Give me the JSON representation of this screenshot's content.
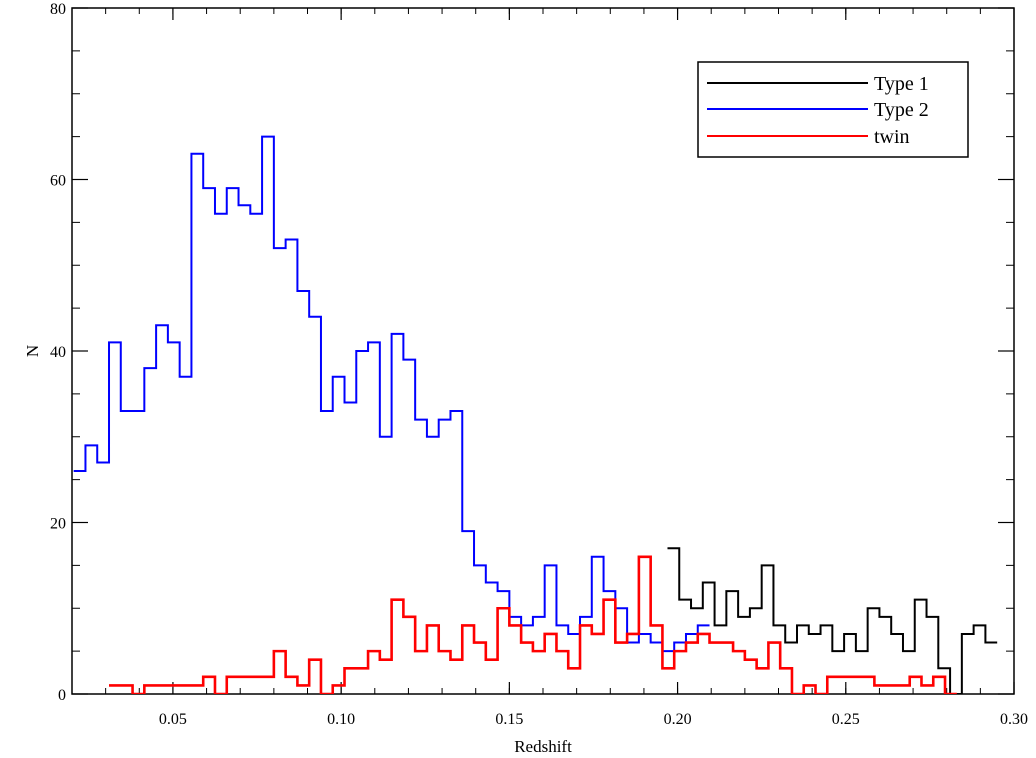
{
  "chart_data": {
    "type": "line",
    "step": true,
    "xlabel": "Redshift",
    "ylabel": "N",
    "xlim": [
      0.02,
      0.3
    ],
    "ylim": [
      0,
      80
    ],
    "x_ticks": [
      "0.05",
      "0.10",
      "0.15",
      "0.20",
      "0.25",
      "0.30"
    ],
    "y_ticks": [
      "0",
      "20",
      "40",
      "60",
      "80"
    ],
    "x_tick_values": [
      0.05,
      0.1,
      0.15,
      0.2,
      0.25,
      0.3
    ],
    "y_tick_values": [
      0,
      20,
      40,
      60,
      80
    ],
    "legend_position": "top-right",
    "bin_width": 0.0035,
    "series": [
      {
        "name": "Type 1",
        "color": "#000000",
        "start": 0.197,
        "values": [
          17,
          11,
          10,
          13,
          8,
          12,
          9,
          10,
          15,
          8,
          6,
          8,
          7,
          8,
          5,
          7,
          5,
          10,
          9,
          7,
          5,
          11,
          9,
          3,
          0,
          7,
          8,
          6
        ]
      },
      {
        "name": "Type 2",
        "color": "#0000ff",
        "start": 0.0205,
        "values": [
          26,
          29,
          27,
          41,
          33,
          33,
          38,
          43,
          41,
          37,
          63,
          59,
          56,
          59,
          57,
          56,
          65,
          52,
          53,
          47,
          44,
          33,
          37,
          34,
          40,
          41,
          30,
          42,
          39,
          32,
          30,
          32,
          33,
          19,
          15,
          13,
          12,
          9,
          8,
          9,
          15,
          8,
          7,
          9,
          16,
          12,
          10,
          6,
          7,
          6,
          5,
          6,
          7,
          8
        ]
      },
      {
        "name": "twin",
        "color": "#ff0000",
        "start": 0.031,
        "values": [
          1,
          1,
          0,
          1,
          1,
          1,
          1,
          1,
          2,
          0,
          2,
          2,
          2,
          2,
          5,
          2,
          1,
          4,
          0,
          1,
          3,
          3,
          5,
          4,
          11,
          9,
          5,
          8,
          5,
          4,
          8,
          6,
          4,
          10,
          8,
          6,
          5,
          7,
          5,
          3,
          8,
          7,
          11,
          6,
          7,
          16,
          8,
          3,
          5,
          6,
          7,
          6,
          6,
          5,
          4,
          3,
          6,
          3,
          0,
          1,
          0,
          2,
          2,
          2,
          2,
          1,
          1,
          1,
          2,
          1,
          2,
          0
        ]
      }
    ]
  }
}
